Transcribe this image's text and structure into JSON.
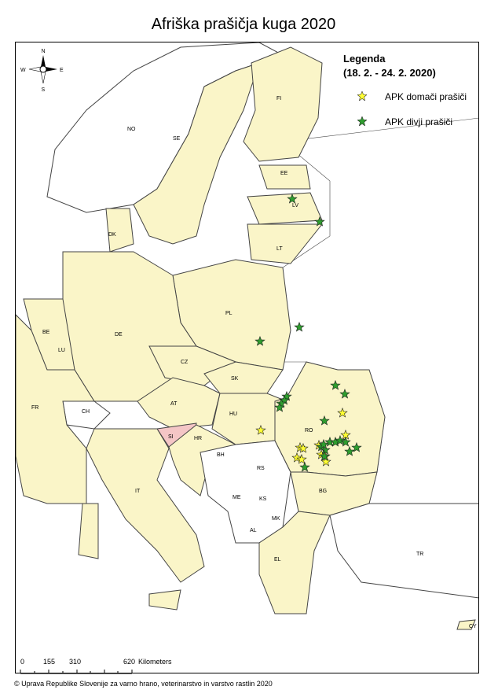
{
  "title": "Afriška prašičja kuga 2020",
  "legend": {
    "heading": "Legenda",
    "period": "(18. 2. - 24. 2. 2020)",
    "items": [
      {
        "label": "APK domači prašiči",
        "icon": "star-icon",
        "color": "#FFFF33"
      },
      {
        "label": "APK divji prašiči",
        "icon": "star-icon",
        "color": "#2E9E2E"
      }
    ]
  },
  "compass": {
    "n": "N",
    "s": "S",
    "e": "E",
    "w": "W"
  },
  "scale_bar": {
    "ticks": [
      "0",
      "155",
      "310",
      "620"
    ],
    "unit": "Kilometers"
  },
  "footer": "© Uprava Republike Slovenije za varno hrano, veterinarstvo in varstvo rastlin 2020",
  "colors": {
    "affected": "#FAF5C8",
    "unaffected": "#FFFFFF",
    "slovenia": "#F4C6C6",
    "water": "#FFFFFF",
    "coast": "#444444",
    "border": "#BBBBBB"
  },
  "country_labels": [
    "NO",
    "SE",
    "FI",
    "EE",
    "LV",
    "LT",
    "DK",
    "PL",
    "DE",
    "BE",
    "LU",
    "CZ",
    "SK",
    "AT",
    "HU",
    "FR",
    "CH",
    "SI",
    "HR",
    "BH",
    "RS",
    "RO",
    "BG",
    "ME",
    "KS",
    "MK",
    "AL",
    "IT",
    "EL",
    "TR",
    "CY"
  ]
}
